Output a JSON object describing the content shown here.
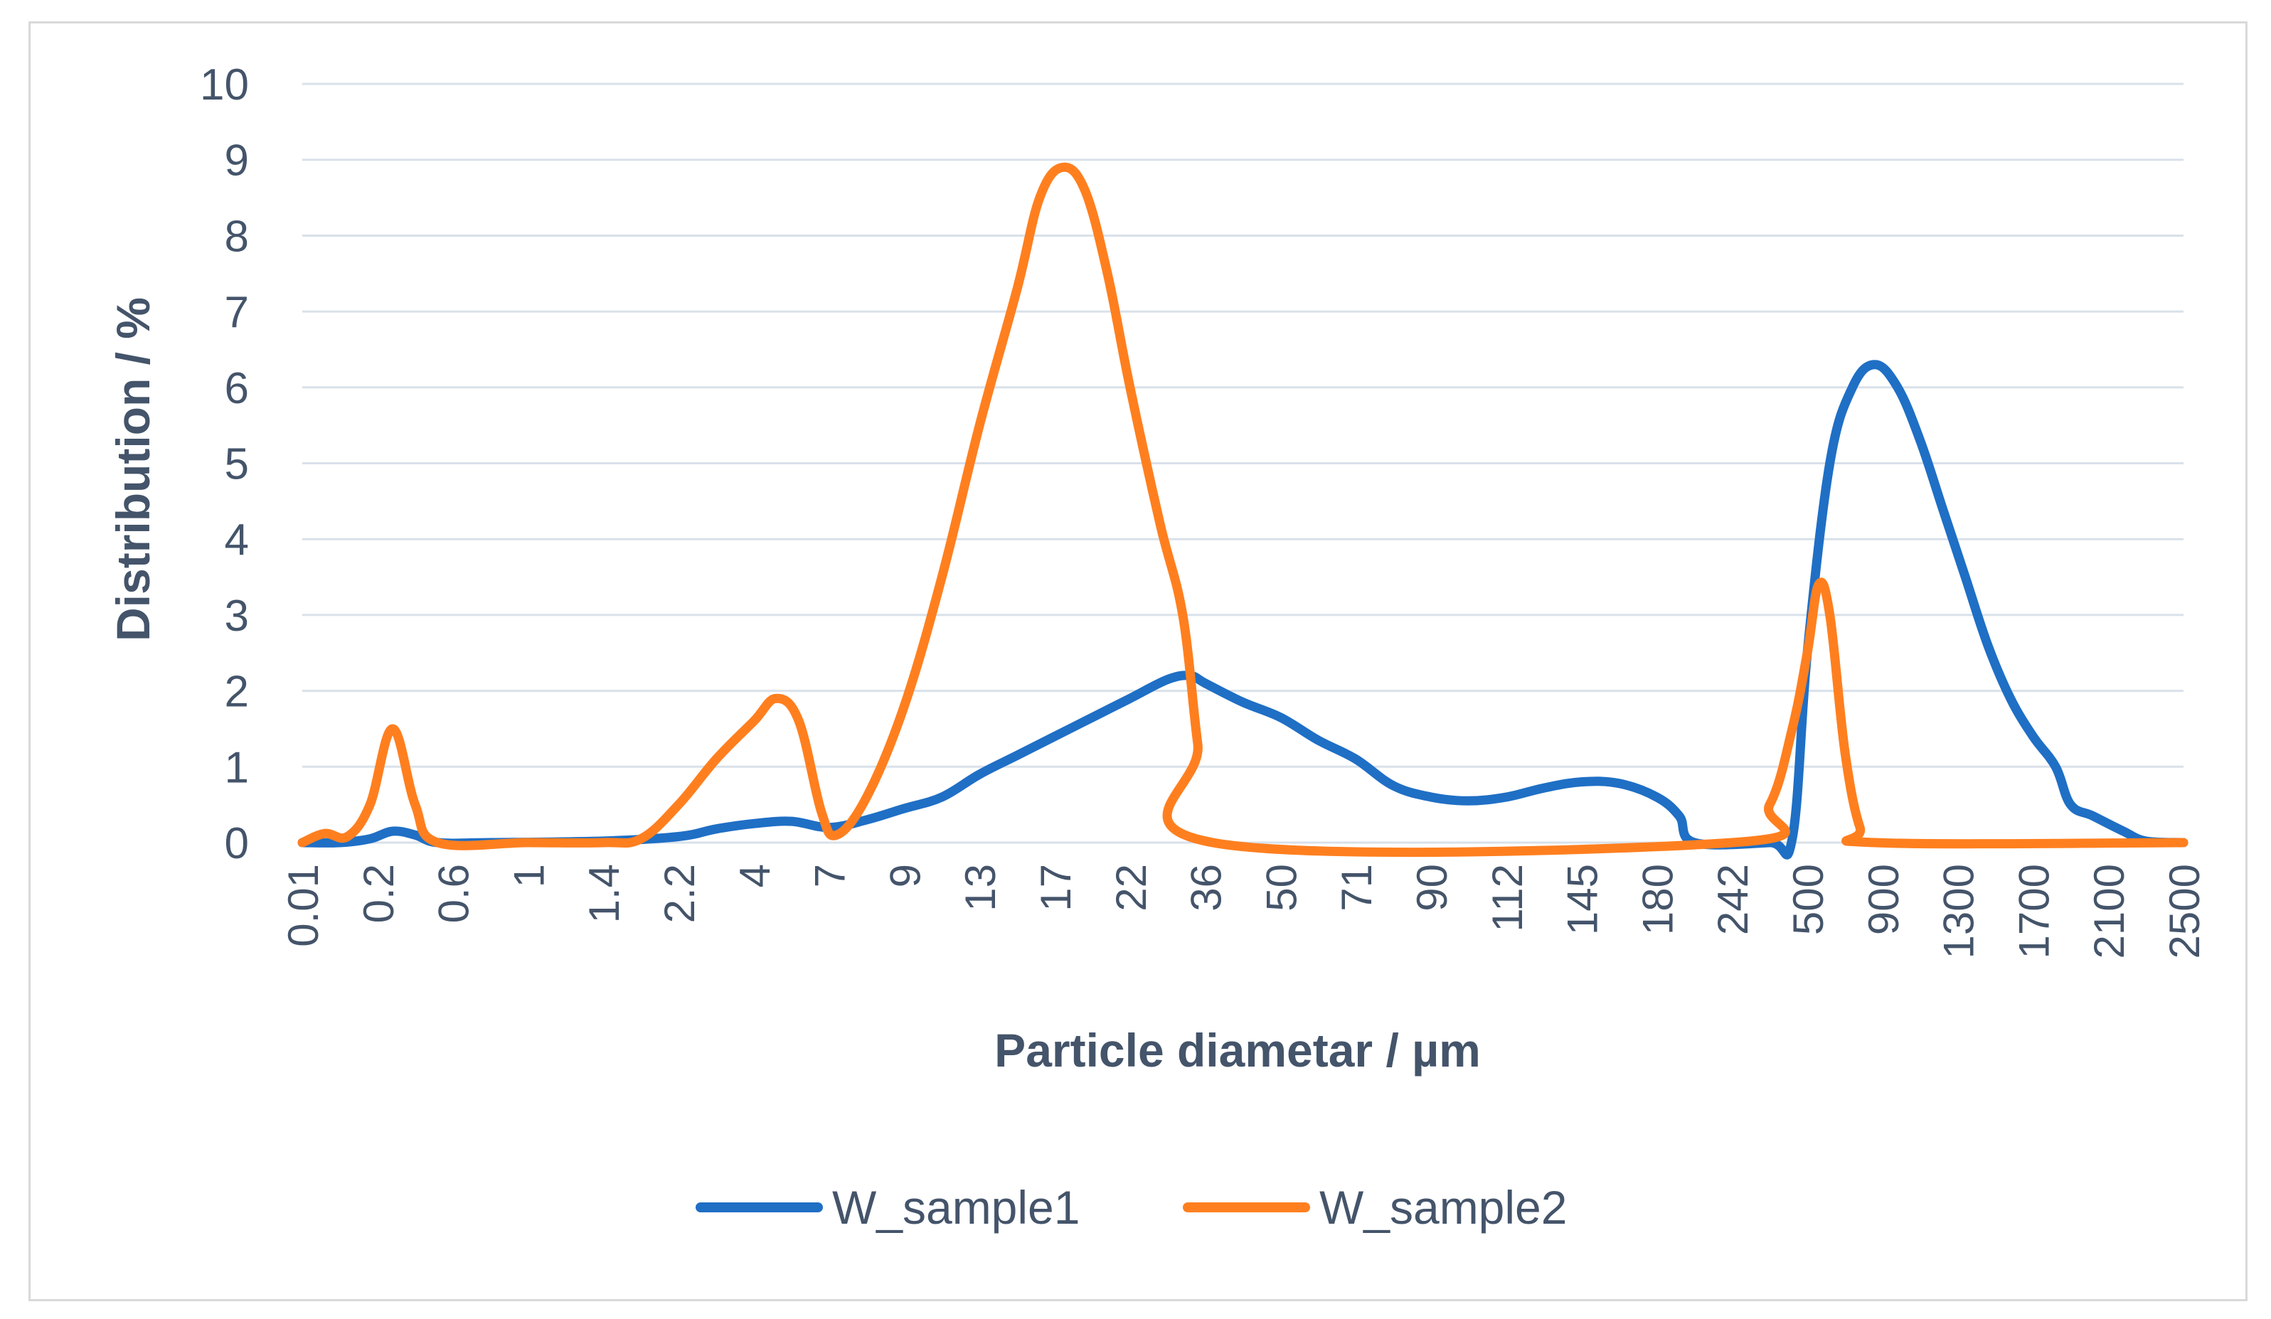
{
  "chart_data": {
    "type": "line",
    "title": "",
    "xlabel": "Particle diametar  / µm",
    "ylabel": "Distribution  / %",
    "ylim": [
      0,
      10
    ],
    "yticks": [
      "0",
      "1",
      "2",
      "3",
      "4",
      "5",
      "6",
      "7",
      "8",
      "9",
      "10"
    ],
    "x_tick_labels": [
      "0.01",
      "0.2",
      "0.6",
      "1",
      "1.4",
      "2.2",
      "4",
      "7",
      "9",
      "13",
      "17",
      "22",
      "36",
      "50",
      "71",
      "90",
      "112",
      "145",
      "180",
      "242",
      "500",
      "900",
      "1300",
      "1700",
      "2100",
      "2500"
    ],
    "grid": true,
    "legend_position": "bottom",
    "colors": {
      "W_sample1": "#1f6fc5",
      "W_sample2": "#ff7f1f",
      "grid": "#d9e1ea",
      "text": "#44546a"
    },
    "series": [
      {
        "name": "W_sample1",
        "color": "#1f6fc5",
        "points": [
          [
            0,
            0
          ],
          [
            0.5,
            0
          ],
          [
            0.9,
            0.05
          ],
          [
            1.2,
            0.15
          ],
          [
            1.5,
            0.1
          ],
          [
            1.8,
            0
          ],
          [
            2.5,
            0
          ],
          [
            4,
            0.02
          ],
          [
            5,
            0.08
          ],
          [
            5.5,
            0.18
          ],
          [
            6,
            0.25
          ],
          [
            6.5,
            0.28
          ],
          [
            7,
            0.2
          ],
          [
            7.5,
            0.3
          ],
          [
            8,
            0.45
          ],
          [
            8.5,
            0.6
          ],
          [
            9,
            0.9
          ],
          [
            9.5,
            1.15
          ],
          [
            10,
            1.4
          ],
          [
            10.5,
            1.65
          ],
          [
            11,
            1.9
          ],
          [
            11.5,
            2.15
          ],
          [
            11.8,
            2.2
          ],
          [
            12,
            2.1
          ],
          [
            12.5,
            1.85
          ],
          [
            13,
            1.65
          ],
          [
            13.5,
            1.35
          ],
          [
            14,
            1.1
          ],
          [
            14.5,
            0.75
          ],
          [
            15,
            0.6
          ],
          [
            15.5,
            0.55
          ],
          [
            16,
            0.6
          ],
          [
            16.5,
            0.72
          ],
          [
            17,
            0.8
          ],
          [
            17.5,
            0.78
          ],
          [
            18,
            0.6
          ],
          [
            18.3,
            0.35
          ],
          [
            18.5,
            0
          ],
          [
            19.5,
            0
          ],
          [
            19.8,
            0.05
          ],
          [
            20,
            2.5
          ],
          [
            20.3,
            5.0
          ],
          [
            20.6,
            6.0
          ],
          [
            20.9,
            6.3
          ],
          [
            21.2,
            6.0
          ],
          [
            21.5,
            5.3
          ],
          [
            21.8,
            4.4
          ],
          [
            22.1,
            3.5
          ],
          [
            22.4,
            2.6
          ],
          [
            22.7,
            1.9
          ],
          [
            23,
            1.4
          ],
          [
            23.3,
            1.0
          ],
          [
            23.5,
            0.5
          ],
          [
            23.8,
            0.35
          ],
          [
            24.2,
            0.15
          ],
          [
            24.5,
            0.02
          ],
          [
            25,
            0
          ]
        ]
      },
      {
        "name": "W_sample2",
        "color": "#ff7f1f",
        "points": [
          [
            0,
            0
          ],
          [
            0.3,
            0.12
          ],
          [
            0.6,
            0.08
          ],
          [
            0.9,
            0.5
          ],
          [
            1.2,
            1.5
          ],
          [
            1.5,
            0.5
          ],
          [
            1.8,
            0
          ],
          [
            3,
            0
          ],
          [
            4,
            0
          ],
          [
            4.5,
            0.05
          ],
          [
            5,
            0.5
          ],
          [
            5.5,
            1.1
          ],
          [
            6,
            1.6
          ],
          [
            6.3,
            1.9
          ],
          [
            6.6,
            1.6
          ],
          [
            6.9,
            0.4
          ],
          [
            7.1,
            0.1
          ],
          [
            7.5,
            0.6
          ],
          [
            8,
            1.8
          ],
          [
            8.5,
            3.5
          ],
          [
            9,
            5.5
          ],
          [
            9.5,
            7.3
          ],
          [
            9.8,
            8.5
          ],
          [
            10.1,
            8.9
          ],
          [
            10.4,
            8.6
          ],
          [
            10.7,
            7.5
          ],
          [
            11,
            6.0
          ],
          [
            11.4,
            4.2
          ],
          [
            11.7,
            3.0
          ],
          [
            11.9,
            1.3
          ],
          [
            12.1,
            0
          ],
          [
            19,
            0
          ],
          [
            19.5,
            0.5
          ],
          [
            19.8,
            1.5
          ],
          [
            20,
            2.5
          ],
          [
            20.15,
            3.4
          ],
          [
            20.3,
            3.0
          ],
          [
            20.5,
            1.2
          ],
          [
            20.7,
            0.2
          ],
          [
            20.9,
            0
          ],
          [
            25,
            0
          ]
        ]
      }
    ]
  }
}
